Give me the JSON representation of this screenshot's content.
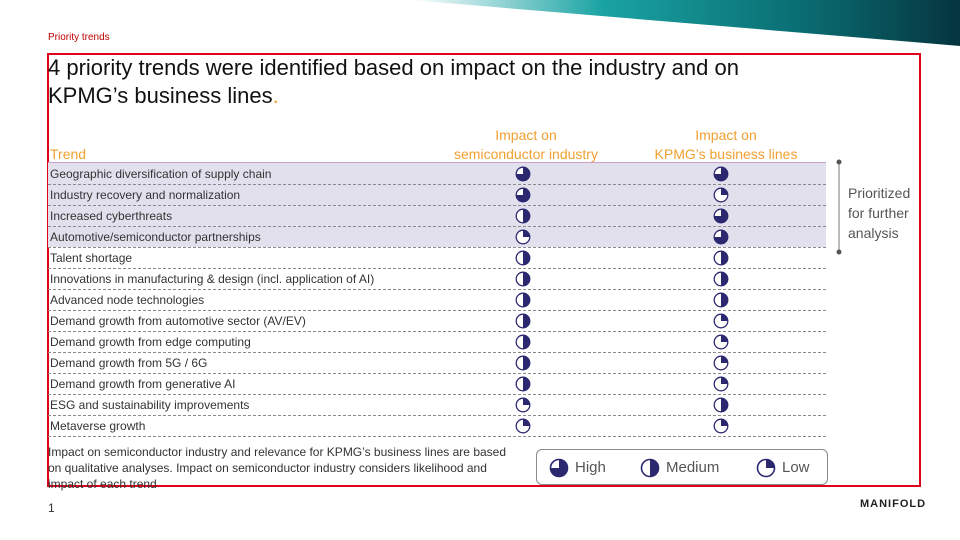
{
  "section_label": "Priority trends",
  "title": "4 priority trends were identified based on impact on the industry and on KPMG’s business lines",
  "title_end": ".",
  "headers": {
    "trend": "Trend",
    "semi_line1": "Impact on",
    "semi_line2": "semiconductor industry",
    "kpmg_line1": "Impact on",
    "kpmg_line2": "KPMG’s business lines"
  },
  "rows": [
    {
      "trend": "Geographic diversification of supply chain",
      "semi": "high",
      "kpmg": "high",
      "prioritized": true
    },
    {
      "trend": "Industry recovery and normalization",
      "semi": "high",
      "kpmg": "low",
      "prioritized": true
    },
    {
      "trend": "Increased cyberthreats",
      "semi": "medium",
      "kpmg": "high",
      "prioritized": true
    },
    {
      "trend": "Automotive/semiconductor partnerships",
      "semi": "low",
      "kpmg": "high",
      "prioritized": true
    },
    {
      "trend": "Talent shortage",
      "semi": "medium",
      "kpmg": "medium",
      "prioritized": false
    },
    {
      "trend": "Innovations in manufacturing & design (incl. application of AI)",
      "semi": "medium",
      "kpmg": "medium",
      "prioritized": false
    },
    {
      "trend": "Advanced node technologies",
      "semi": "medium",
      "kpmg": "medium",
      "prioritized": false
    },
    {
      "trend": "Demand growth from automotive sector (AV/EV)",
      "semi": "medium",
      "kpmg": "low",
      "prioritized": false
    },
    {
      "trend": "Demand growth from edge computing",
      "semi": "medium",
      "kpmg": "low",
      "prioritized": false
    },
    {
      "trend": "Demand growth from 5G / 6G",
      "semi": "medium",
      "kpmg": "low",
      "prioritized": false
    },
    {
      "trend": "Demand growth from generative AI",
      "semi": "medium",
      "kpmg": "low",
      "prioritized": false
    },
    {
      "trend": "ESG and sustainability improvements",
      "semi": "low",
      "kpmg": "medium",
      "prioritized": false
    },
    {
      "trend": "Metaverse growth",
      "semi": "low",
      "kpmg": "low",
      "prioritized": false
    }
  ],
  "prioritized_note_line1": "Prioritized",
  "prioritized_note_line2": "for further",
  "prioritized_note_line3": "analysis",
  "footnote": "Impact on semiconductor industry and relevance for KPMG’s business lines are based on qualitative analyses. Impact on semiconductor industry considers likelihood and impact of each trend",
  "legend": {
    "high": "High",
    "medium": "Medium",
    "low": "Low"
  },
  "page_number": "1",
  "logo": "MANIFOLD",
  "colors": {
    "accent_orange": "#f0a030",
    "frame_red": "#e0001b",
    "harvey_ball": "#2b2870",
    "prioritized_band": "#e3e0ee",
    "banner_teal": "#0e8a8a"
  },
  "icons": {
    "high": "harvey-ball-three-quarter-icon",
    "medium": "harvey-ball-half-icon",
    "low": "harvey-ball-quarter-icon"
  }
}
